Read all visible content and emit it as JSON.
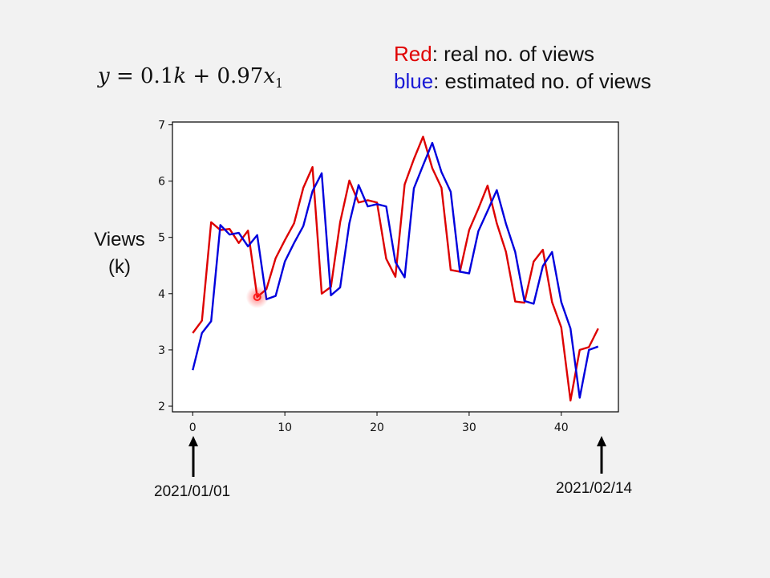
{
  "formula": {
    "y": "y",
    "eq": " = 0.1",
    "k": "k",
    "plus": " + 0.97",
    "x": "x",
    "sub": "1"
  },
  "legend_note": {
    "red_word": "Red",
    "red_rest": ": real no. of views",
    "blue_word": "blue",
    "blue_rest": ":  estimated no. of views"
  },
  "ylabel_line1": "Views",
  "ylabel_line2": "(k)",
  "start_date": "2021/01/01",
  "end_date": "2021/02/14",
  "colors": {
    "real": "#dd0000",
    "estimated": "#0000dd",
    "highlight": "#ff2020"
  },
  "chart_data": {
    "type": "line",
    "x": [
      0,
      1,
      2,
      3,
      4,
      5,
      6,
      7,
      8,
      9,
      10,
      11,
      12,
      13,
      14,
      15,
      16,
      17,
      18,
      19,
      20,
      21,
      22,
      23,
      24,
      25,
      26,
      27,
      28,
      29,
      30,
      31,
      32,
      33,
      34,
      35,
      36,
      37,
      38,
      39,
      40,
      41,
      42,
      43,
      44
    ],
    "series": [
      {
        "name": "real",
        "color": "#dd0000",
        "values": [
          3.3,
          3.52,
          5.27,
          5.13,
          5.15,
          4.9,
          5.12,
          3.94,
          4.08,
          4.63,
          4.95,
          5.25,
          5.88,
          6.25,
          4.0,
          4.12,
          5.27,
          6.01,
          5.62,
          5.66,
          5.62,
          4.62,
          4.3,
          5.94,
          6.39,
          6.79,
          6.23,
          5.88,
          4.42,
          4.39,
          5.13,
          5.51,
          5.92,
          5.25,
          4.74,
          3.86,
          3.84,
          4.57,
          4.78,
          3.85,
          3.4,
          2.1,
          3.0,
          3.05,
          3.38
        ]
      },
      {
        "name": "estimated",
        "color": "#0000dd",
        "values": [
          2.64,
          3.3,
          3.51,
          5.22,
          5.05,
          5.08,
          4.84,
          5.04,
          3.9,
          3.96,
          4.57,
          4.9,
          5.2,
          5.82,
          6.14,
          3.97,
          4.11,
          5.25,
          5.93,
          5.55,
          5.59,
          5.55,
          4.56,
          4.29,
          5.87,
          6.28,
          6.68,
          6.16,
          5.81,
          4.39,
          4.36,
          5.11,
          5.47,
          5.84,
          5.24,
          4.74,
          3.87,
          3.82,
          4.49,
          4.74,
          3.85,
          3.38,
          2.15,
          3.0,
          3.06
        ]
      }
    ],
    "xlim": [
      -2.2,
      46.2
    ],
    "ylim": [
      1.9,
      7.05
    ],
    "xticks": [
      0,
      10,
      20,
      30,
      40
    ],
    "yticks": [
      2,
      3,
      4,
      5,
      6,
      7
    ],
    "highlight_point": {
      "x": 7,
      "y": 3.94
    },
    "grid": false
  }
}
